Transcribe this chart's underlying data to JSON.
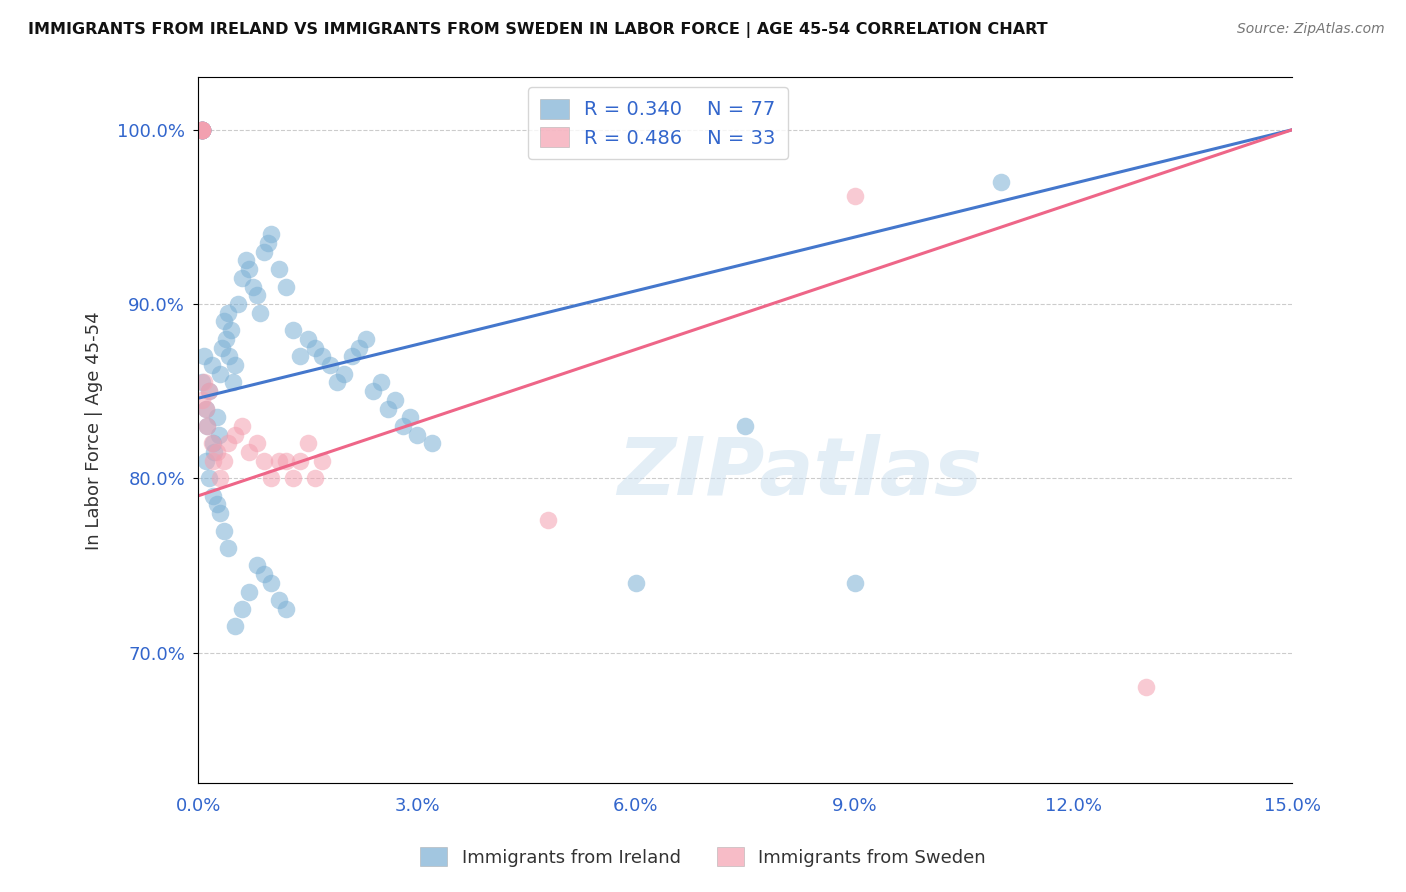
{
  "title": "IMMIGRANTS FROM IRELAND VS IMMIGRANTS FROM SWEDEN IN LABOR FORCE | AGE 45-54 CORRELATION CHART",
  "source": "Source: ZipAtlas.com",
  "ylabel_label": "In Labor Force | Age 45-54",
  "xlim": [
    0.0,
    0.15
  ],
  "ylim": [
    0.625,
    1.03
  ],
  "xtick_positions": [
    0.0,
    0.03,
    0.06,
    0.09,
    0.12,
    0.15
  ],
  "xtick_labels": [
    "0.0%",
    "3.0%",
    "6.0%",
    "9.0%",
    "12.0%",
    "15.0%"
  ],
  "ytick_labels": [
    "70.0%",
    "80.0%",
    "90.0%",
    "100.0%"
  ],
  "ytick_positions": [
    0.7,
    0.8,
    0.9,
    1.0
  ],
  "ireland_color": "#7BAFD4",
  "sweden_color": "#F4A0B0",
  "ireland_line_color": "#4477CC",
  "sweden_line_color": "#EE6688",
  "ireland_R": 0.34,
  "ireland_N": 77,
  "sweden_R": 0.486,
  "sweden_N": 33,
  "watermark": "ZIPatlas",
  "ireland_scatter_x": [
    0.0005,
    0.0008,
    0.001,
    0.0012,
    0.0015,
    0.0018,
    0.002,
    0.0022,
    0.0025,
    0.0028,
    0.003,
    0.0032,
    0.0035,
    0.0038,
    0.004,
    0.0042,
    0.0045,
    0.0048,
    0.005,
    0.0055,
    0.006,
    0.0065,
    0.007,
    0.0075,
    0.008,
    0.0085,
    0.009,
    0.0095,
    0.01,
    0.011,
    0.012,
    0.013,
    0.014,
    0.015,
    0.016,
    0.017,
    0.018,
    0.019,
    0.02,
    0.021,
    0.022,
    0.023,
    0.024,
    0.025,
    0.026,
    0.027,
    0.028,
    0.029,
    0.03,
    0.032,
    0.001,
    0.0015,
    0.002,
    0.0025,
    0.003,
    0.0035,
    0.004,
    0.005,
    0.006,
    0.007,
    0.008,
    0.009,
    0.01,
    0.011,
    0.012,
    0.06,
    0.075,
    0.09,
    0.11,
    0.0005,
    0.0005,
    0.0005,
    0.0005,
    0.0005,
    0.0005,
    0.0005,
    0.0005
  ],
  "ireland_scatter_y": [
    0.855,
    0.87,
    0.84,
    0.83,
    0.85,
    0.865,
    0.82,
    0.815,
    0.835,
    0.825,
    0.86,
    0.875,
    0.89,
    0.88,
    0.895,
    0.87,
    0.885,
    0.855,
    0.865,
    0.9,
    0.915,
    0.925,
    0.92,
    0.91,
    0.905,
    0.895,
    0.93,
    0.935,
    0.94,
    0.92,
    0.91,
    0.885,
    0.87,
    0.88,
    0.875,
    0.87,
    0.865,
    0.855,
    0.86,
    0.87,
    0.875,
    0.88,
    0.85,
    0.855,
    0.84,
    0.845,
    0.83,
    0.835,
    0.825,
    0.82,
    0.81,
    0.8,
    0.79,
    0.785,
    0.78,
    0.77,
    0.76,
    0.715,
    0.725,
    0.735,
    0.75,
    0.745,
    0.74,
    0.73,
    0.725,
    0.74,
    0.83,
    0.74,
    0.97,
    1.0,
    1.0,
    1.0,
    1.0,
    1.0,
    1.0,
    1.0,
    1.0
  ],
  "sweden_scatter_x": [
    0.0005,
    0.0008,
    0.001,
    0.0012,
    0.0015,
    0.0018,
    0.002,
    0.0025,
    0.003,
    0.0035,
    0.004,
    0.005,
    0.006,
    0.007,
    0.008,
    0.009,
    0.01,
    0.011,
    0.012,
    0.013,
    0.014,
    0.015,
    0.016,
    0.017,
    0.0005,
    0.0005,
    0.0005,
    0.0005,
    0.0005,
    0.0005,
    0.048,
    0.09,
    0.13
  ],
  "sweden_scatter_y": [
    0.845,
    0.855,
    0.84,
    0.83,
    0.85,
    0.82,
    0.81,
    0.815,
    0.8,
    0.81,
    0.82,
    0.825,
    0.83,
    0.815,
    0.82,
    0.81,
    0.8,
    0.81,
    0.81,
    0.8,
    0.81,
    0.82,
    0.8,
    0.81,
    1.0,
    1.0,
    1.0,
    1.0,
    1.0,
    1.0,
    0.776,
    0.962,
    0.68
  ]
}
